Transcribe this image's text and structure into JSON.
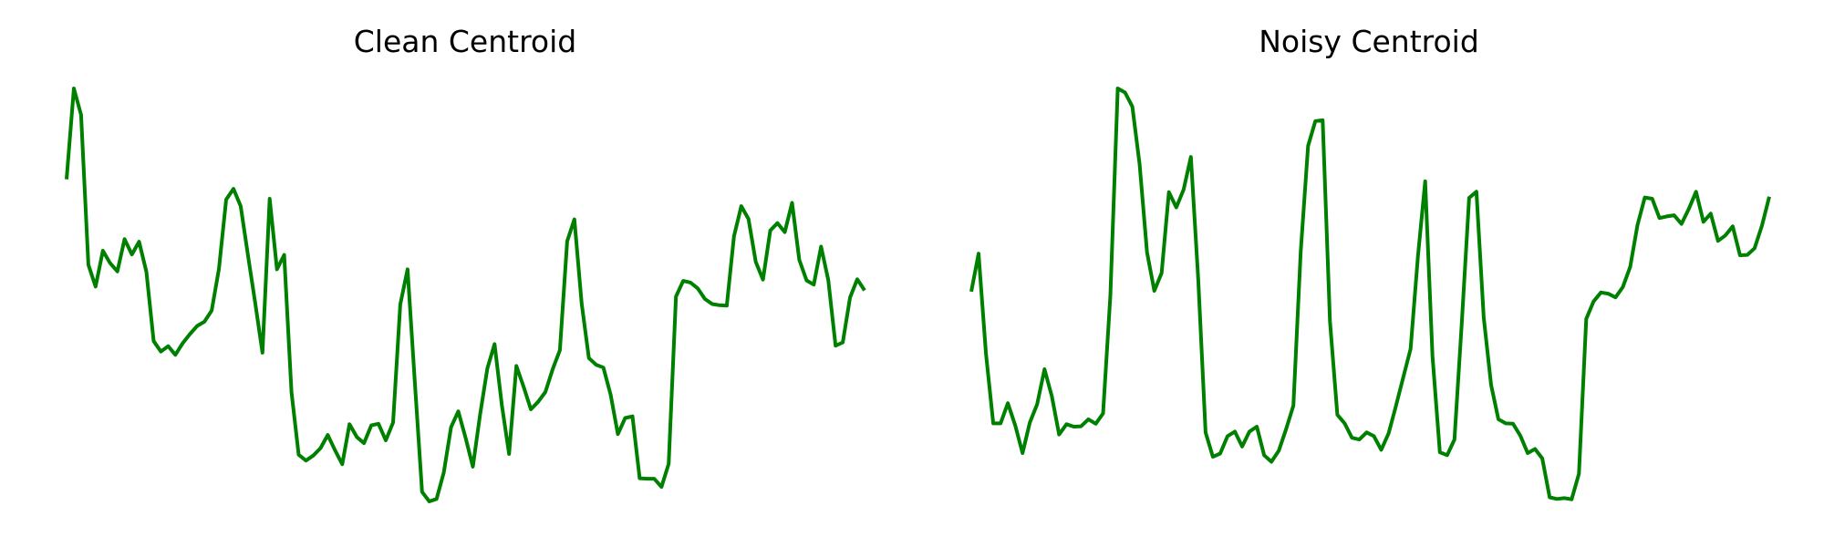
{
  "chart_data": [
    {
      "type": "line",
      "title": "Clean Centroid",
      "xlabel": "",
      "ylabel": "",
      "axes_visible": false,
      "grid": false,
      "ylim": [
        0,
        100
      ],
      "color": "#008000",
      "series": [
        {
          "values": [
            78.0,
            100.0,
            93.6,
            57.3,
            52.0,
            60.7,
            57.7,
            55.7,
            63.5,
            59.8,
            62.9,
            55.6,
            38.8,
            36.3,
            37.6,
            35.5,
            38.3,
            40.5,
            42.5,
            43.5,
            46.2,
            56.2,
            73.1,
            75.7,
            71.5,
            59.6,
            48.1,
            36.0,
            73.3,
            56.2,
            59.7,
            26.5,
            11.3,
            9.9,
            11.1,
            12.9,
            16.1,
            12.4,
            9.0,
            18.7,
            15.6,
            14.1,
            18.4,
            18.8,
            14.8,
            19.1,
            47.7,
            56.2,
            29.1,
            2.3,
            0.0,
            0.6,
            7.0,
            18.0,
            21.8,
            15.4,
            8.4,
            21.0,
            32.2,
            38.1,
            23.3,
            11.5,
            32.8,
            27.8,
            22.3,
            24.1,
            26.5,
            32.0,
            36.6,
            63.0,
            68.3,
            47.9,
            34.7,
            33.1,
            32.4,
            25.8,
            16.3,
            20.2,
            20.6,
            5.6,
            5.5,
            5.5,
            3.5,
            9.1,
            49.6,
            53.4,
            53.0,
            51.6,
            49.0,
            47.8,
            47.5,
            47.4,
            64.2,
            71.5,
            68.4,
            58.0,
            53.7,
            65.6,
            67.4,
            65.2,
            72.3,
            58.5,
            53.5,
            52.5,
            61.7,
            53.6,
            37.7,
            38.5,
            49.4,
            53.8,
            51.1
          ]
        }
      ]
    },
    {
      "type": "line",
      "title": "Noisy Centroid",
      "xlabel": "",
      "ylabel": "",
      "axes_visible": false,
      "grid": false,
      "ylim": [
        0,
        100
      ],
      "color": "#008000",
      "series": [
        {
          "values": [
            50.8,
            60.0,
            35.8,
            18.9,
            18.9,
            23.8,
            18.4,
            11.7,
            19.1,
            23.5,
            32.0,
            25.5,
            16.2,
            18.7,
            18.1,
            18.2,
            19.9,
            18.8,
            21.3,
            49.8,
            100.0,
            99.0,
            95.6,
            81.6,
            60.3,
            51.0,
            55.3,
            74.9,
            71.2,
            75.5,
            83.4,
            53.6,
            16.7,
            10.8,
            11.6,
            15.8,
            16.9,
            13.3,
            16.9,
            18.1,
            11.2,
            9.6,
            12.3,
            17.5,
            23.2,
            60.4,
            86.1,
            92.1,
            92.3,
            43.6,
            21.0,
            18.9,
            15.4,
            15.0,
            16.7,
            15.8,
            12.5,
            16.5,
            23.1,
            30.0,
            36.9,
            59.2,
            77.5,
            35.2,
            11.9,
            11.2,
            15.0,
            43.1,
            73.5,
            75.0,
            44.5,
            28.2,
            19.9,
            18.9,
            18.8,
            15.9,
            11.7,
            12.7,
            10.4,
            1.0,
            0.6,
            0.8,
            0.5,
            6.7,
            44.2,
            48.4,
            50.6,
            50.3,
            49.4,
            51.9,
            56.8,
            66.9,
            73.6,
            73.3,
            68.6,
            69.0,
            69.3,
            67.2,
            70.8,
            75.0,
            67.7,
            69.7,
            63.1,
            64.4,
            66.6,
            59.6,
            59.7,
            61.3,
            66.8,
            73.8
          ]
        }
      ]
    }
  ]
}
